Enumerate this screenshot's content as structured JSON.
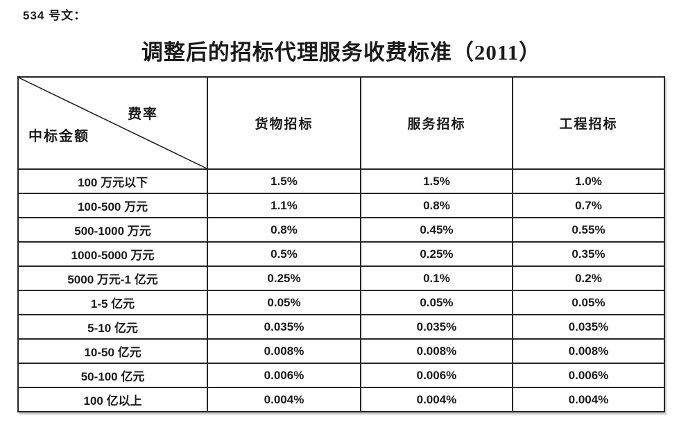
{
  "doc": {
    "doc_label": "534 号文：",
    "title": "调整后的招标代理服务收费标准（2011）"
  },
  "table": {
    "corner": {
      "top_right": "费率",
      "bottom_left": "中标金额"
    },
    "columns": [
      "货物招标",
      "服务招标",
      "工程招标"
    ],
    "rows": [
      {
        "label": "100 万元以下",
        "values": [
          "1.5%",
          "1.5%",
          "1.0%"
        ]
      },
      {
        "label": "100-500 万元",
        "values": [
          "1.1%",
          "0.8%",
          "0.7%"
        ]
      },
      {
        "label": "500-1000 万元",
        "values": [
          "0.8%",
          "0.45%",
          "0.55%"
        ]
      },
      {
        "label": "1000-5000 万元",
        "values": [
          "0.5%",
          "0.25%",
          "0.35%"
        ]
      },
      {
        "label": "5000 万元-1 亿元",
        "values": [
          "0.25%",
          "0.1%",
          "0.2%"
        ]
      },
      {
        "label": "1-5 亿元",
        "values": [
          "0.05%",
          "0.05%",
          "0.05%"
        ]
      },
      {
        "label": "5-10 亿元",
        "values": [
          "0.035%",
          "0.035%",
          "0.035%"
        ]
      },
      {
        "label": "10-50 亿元",
        "values": [
          "0.008%",
          "0.008%",
          "0.008%"
        ]
      },
      {
        "label": "50-100 亿元",
        "values": [
          "0.006%",
          "0.006%",
          "0.006%"
        ]
      },
      {
        "label": "100 亿以上",
        "values": [
          "0.004%",
          "0.004%",
          "0.004%"
        ]
      }
    ],
    "border_color": "#262626",
    "text_color": "#1a1a1a",
    "background_color": "#ffffff"
  }
}
